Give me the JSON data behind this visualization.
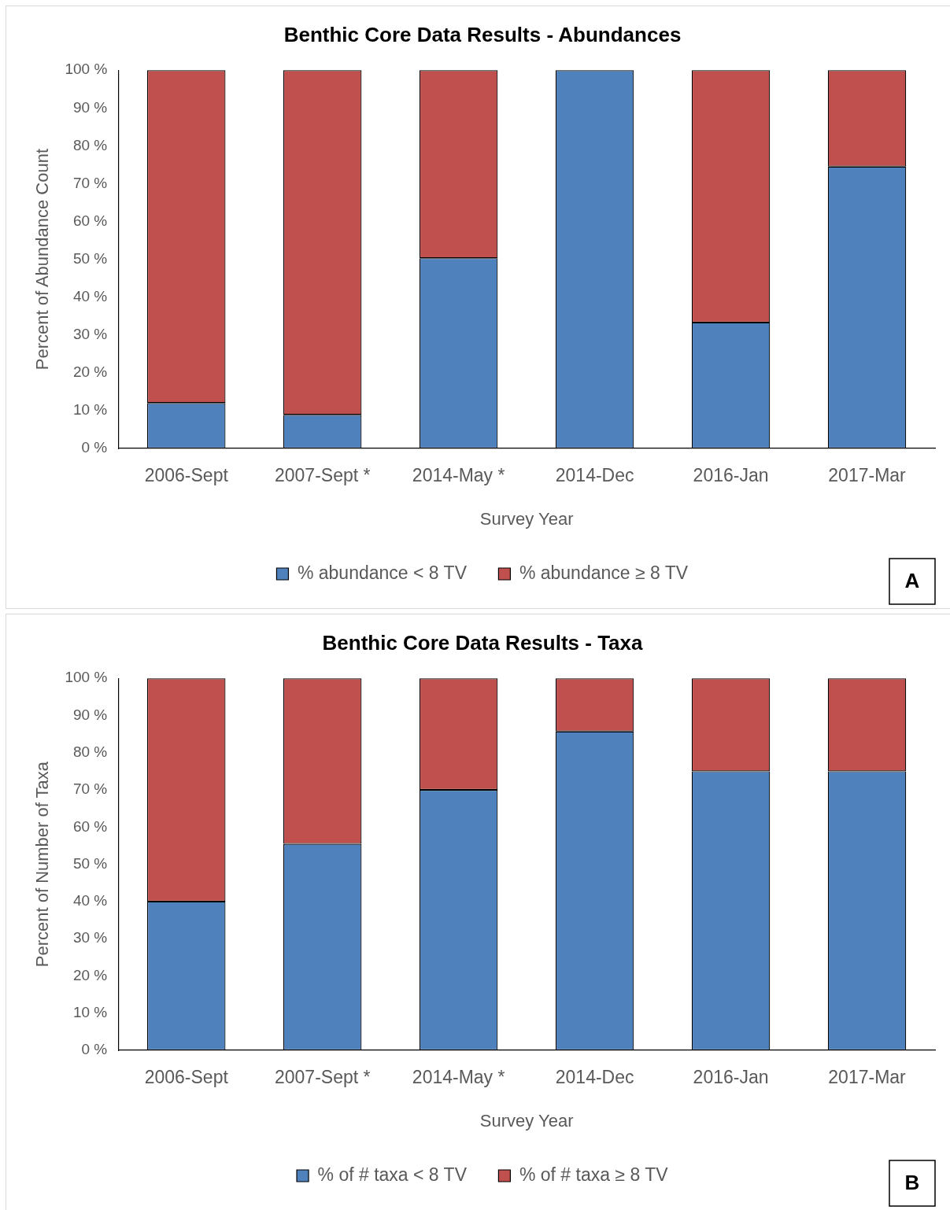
{
  "chart_data": [
    {
      "type": "bar",
      "title": "Benthic Core Data Results - Abundances",
      "xlabel": "Survey Year",
      "ylabel": "Percent of Abundance Count",
      "categories": [
        "2006-Sept",
        "2007-Sept *",
        "2014-May *",
        "2014-Dec",
        "2016-Jan",
        "2017-Mar"
      ],
      "stacked": true,
      "series": [
        {
          "name": "% abundance < 8 TV",
          "color": "#4f81bd",
          "values": [
            12,
            8.9,
            50.3,
            100,
            33.3,
            74.5
          ]
        },
        {
          "name": "% abundance ≥ 8 TV",
          "color": "#c0504d",
          "values": [
            88,
            91.1,
            49.7,
            0,
            66.7,
            25.5
          ]
        }
      ],
      "ylim": [
        0,
        100
      ],
      "yticks": [
        {
          "value": 0,
          "label": "0 %"
        },
        {
          "value": 10,
          "label": "10 %"
        },
        {
          "value": 20,
          "label": "20 %"
        },
        {
          "value": 30,
          "label": "30 %"
        },
        {
          "value": 40,
          "label": "40 %"
        },
        {
          "value": 50,
          "label": "50 %"
        },
        {
          "value": 60,
          "label": "60 %"
        },
        {
          "value": 70,
          "label": "70 %"
        },
        {
          "value": 80,
          "label": "80 %"
        },
        {
          "value": 90,
          "label": "90 %"
        },
        {
          "value": 100,
          "label": "100 %"
        }
      ],
      "grid": false,
      "legend": "bottom",
      "annotations": [
        "A"
      ]
    },
    {
      "type": "bar",
      "title": "Benthic Core Data Results - Taxa",
      "xlabel": "Survey Year",
      "ylabel": "Percent of Number of Taxa",
      "categories": [
        "2006-Sept",
        "2007-Sept *",
        "2014-May *",
        "2014-Dec",
        "2016-Jan",
        "2017-Mar"
      ],
      "stacked": true,
      "series": [
        {
          "name": "% of # taxa < 8 TV",
          "color": "#4f81bd",
          "values": [
            40,
            55.5,
            70,
            85.7,
            75,
            75
          ]
        },
        {
          "name": "% of # taxa ≥ 8 TV",
          "color": "#c0504d",
          "values": [
            60,
            44.5,
            30,
            14.3,
            25,
            25
          ]
        }
      ],
      "ylim": [
        0,
        100
      ],
      "yticks": [
        {
          "value": 0,
          "label": "0 %"
        },
        {
          "value": 10,
          "label": "10 %"
        },
        {
          "value": 20,
          "label": "20 %"
        },
        {
          "value": 30,
          "label": "30 %"
        },
        {
          "value": 40,
          "label": "40 %"
        },
        {
          "value": 50,
          "label": "50 %"
        },
        {
          "value": 60,
          "label": "60 %"
        },
        {
          "value": 70,
          "label": "70 %"
        },
        {
          "value": 80,
          "label": "80 %"
        },
        {
          "value": 90,
          "label": "90 %"
        },
        {
          "value": 100,
          "label": "100 %"
        }
      ],
      "grid": false,
      "legend": "bottom",
      "annotations": [
        "B"
      ]
    }
  ]
}
